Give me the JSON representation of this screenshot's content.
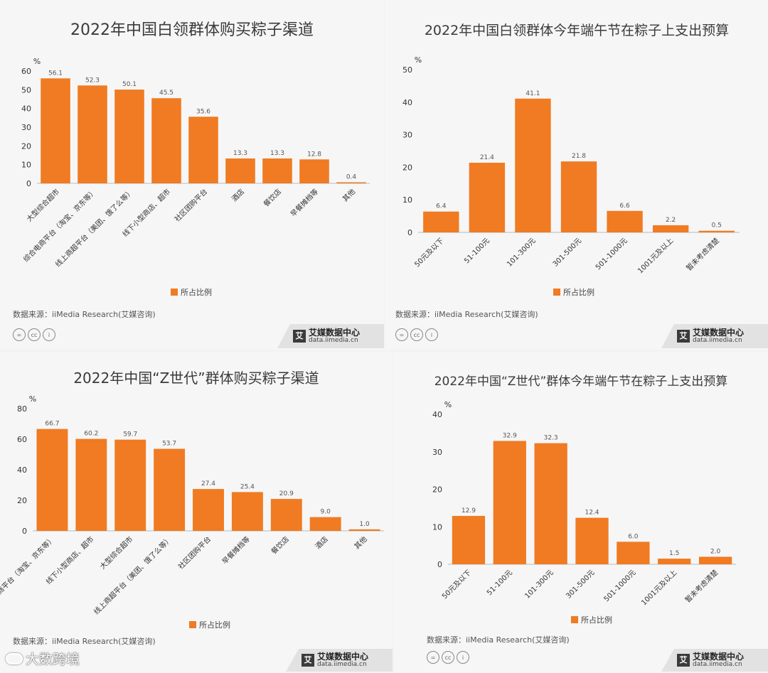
{
  "colors": {
    "bar": "#f07b22",
    "axis": "#bbbbbb"
  },
  "source_text": "数据来源：iiMedia Research(艾媒咨询)",
  "legend_label": "所占比例",
  "brand": {
    "name": "艾媒数据中心",
    "url": "data.iimedia.cn",
    "logo_char": "艾"
  },
  "cc_icons": [
    "=",
    "cc",
    "i"
  ],
  "watermark": "大数跨境",
  "chart_data": [
    {
      "type": "bar",
      "title": "2022年中国白领群体购买粽子渠道",
      "unit": "%",
      "ylim": [
        0,
        60
      ],
      "yticks": [
        0,
        10,
        20,
        30,
        40,
        50,
        60
      ],
      "categories": [
        "大型综合超市",
        "综合电商平台（淘宝、京东等）",
        "线上商超平台（美团、饿了么等）",
        "线下小型商店、超市",
        "社区团购平台",
        "酒店",
        "餐饮店",
        "早餐摊档等",
        "其他"
      ],
      "values": [
        56.1,
        52.3,
        50.1,
        45.5,
        35.6,
        13.3,
        13.3,
        12.8,
        0.4
      ],
      "value_labels": [
        "56.1",
        "52.3",
        "50.1",
        "45.5",
        "35.6",
        "13.3",
        "13.3",
        "12.8",
        "0.4"
      ],
      "series": [
        {
          "name": "所占比例"
        }
      ]
    },
    {
      "type": "bar",
      "title": "2022年中国白领群体今年端午节在粽子上支出预算",
      "unit": "%",
      "ylim": [
        0,
        50
      ],
      "yticks": [
        0,
        10,
        20,
        30,
        40,
        50
      ],
      "categories": [
        "50元及以下",
        "51-100元",
        "101-300元",
        "301-500元",
        "501-1000元",
        "1001元及以上",
        "暂未考虑清楚"
      ],
      "values": [
        6.4,
        21.4,
        41.1,
        21.8,
        6.6,
        2.2,
        0.5
      ],
      "value_labels": [
        "6.4",
        "21.4",
        "41.1",
        "21.8",
        "6.6",
        "2.2",
        "0.5"
      ],
      "series": [
        {
          "name": "所占比例"
        }
      ]
    },
    {
      "type": "bar",
      "title": "2022年中国“Z世代”群体购买粽子渠道",
      "unit": "%",
      "ylim": [
        0,
        80
      ],
      "yticks": [
        0,
        20,
        40,
        60,
        80
      ],
      "categories": [
        "综合电商平台（淘宝、京东等）",
        "线下小型商店、超市",
        "大型综合超市",
        "线上商超平台（美团、饿了么等）",
        "社区团购平台",
        "早餐摊档等",
        "餐饮店",
        "酒店",
        "其他"
      ],
      "values": [
        66.7,
        60.2,
        59.7,
        53.7,
        27.4,
        25.4,
        20.9,
        9.0,
        1.0
      ],
      "value_labels": [
        "66.7",
        "60.2",
        "59.7",
        "53.7",
        "27.4",
        "25.4",
        "20.9",
        "9.0",
        "1.0"
      ],
      "series": [
        {
          "name": "所占比例"
        }
      ]
    },
    {
      "type": "bar",
      "title": "2022年中国“Z世代”群体今年端午节在粽子上支出预算",
      "unit": "%",
      "ylim": [
        0,
        40
      ],
      "yticks": [
        0,
        10,
        20,
        30,
        40
      ],
      "categories": [
        "50元及以下",
        "51-100元",
        "101-300元",
        "301-500元",
        "501-1000元",
        "1001元及以上",
        "暂未考虑清楚"
      ],
      "values": [
        12.9,
        32.9,
        32.3,
        12.4,
        6.0,
        1.5,
        2.0
      ],
      "value_labels": [
        "12.9",
        "32.9",
        "32.3",
        "12.4",
        "6.0",
        "1.5",
        "2.0"
      ],
      "series": [
        {
          "name": "所占比例"
        }
      ]
    }
  ]
}
